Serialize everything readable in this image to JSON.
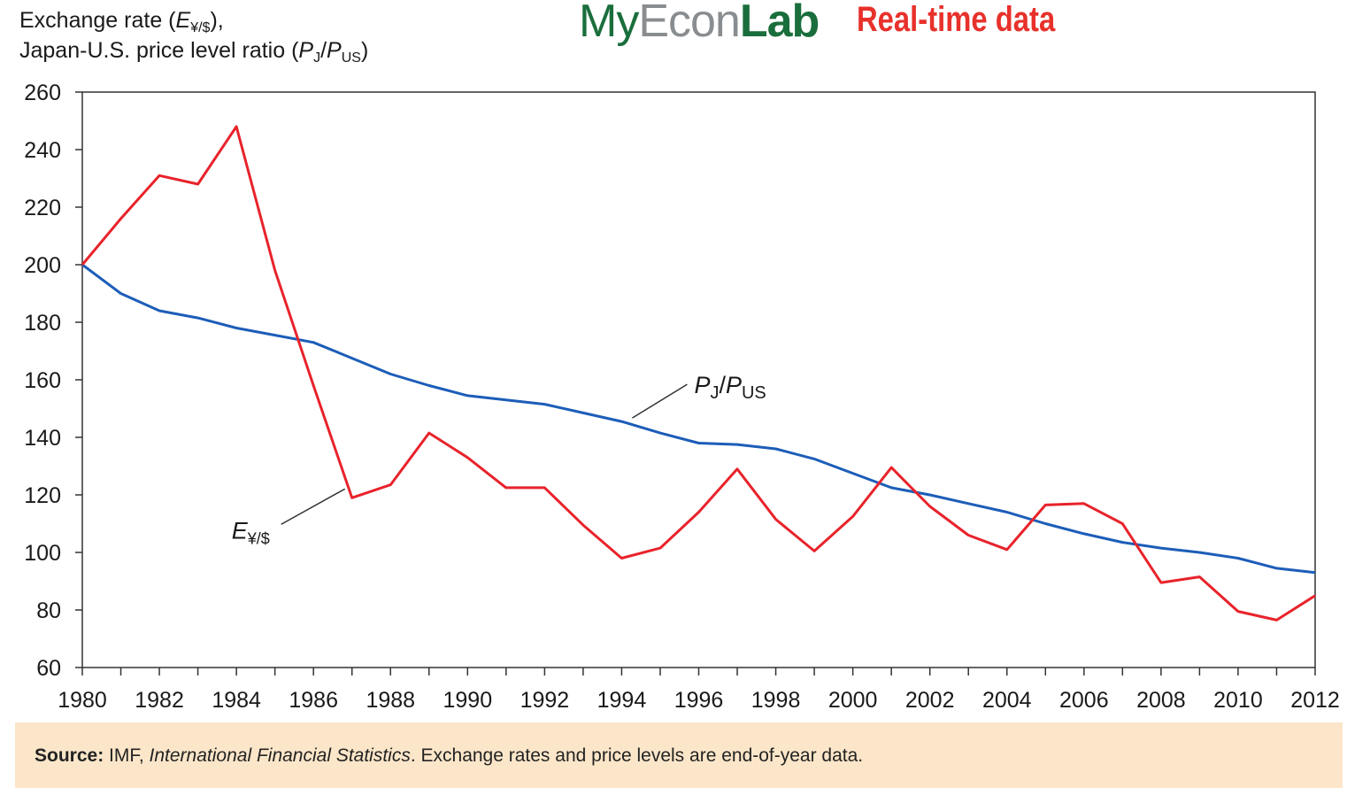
{
  "header": {
    "ylabel_line1_prefix": "Exchange rate (",
    "ylabel_line1_var": "E",
    "ylabel_line1_sub": "¥/$",
    "ylabel_line1_suffix": "),",
    "ylabel_line2_prefix": "Japan-U.S. price level ratio (",
    "ylabel_line2_p1": "P",
    "ylabel_line2_sub1": "J",
    "ylabel_line2_slash": "/",
    "ylabel_line2_p2": "P",
    "ylabel_line2_sub2": "US",
    "ylabel_line2_suffix": ")"
  },
  "brand": {
    "my": "My",
    "econ": "Econ",
    "lab": "Lab",
    "realtime": "Real-time data",
    "colors": {
      "green": "#1a6e3c",
      "gray": "#8a8d8f",
      "red": "#e8312b"
    }
  },
  "source": {
    "label": "Source:",
    "text1": " IMF, ",
    "publication": "International Financial Statistics",
    "text2": ". Exchange rates and price levels are end-of-year data."
  },
  "chart_data": {
    "type": "line",
    "ylim": [
      60,
      260
    ],
    "xlim": [
      1980,
      2012
    ],
    "yticks": [
      60,
      80,
      100,
      120,
      140,
      160,
      180,
      200,
      220,
      240,
      260
    ],
    "xtick_labels": [
      1980,
      1982,
      1984,
      1986,
      1988,
      1990,
      1992,
      1994,
      1996,
      1998,
      2000,
      2002,
      2004,
      2006,
      2008,
      2010,
      2012
    ],
    "grid": false,
    "x": [
      1980,
      1981,
      1982,
      1983,
      1984,
      1985,
      1986,
      1987,
      1988,
      1989,
      1990,
      1991,
      1992,
      1993,
      1994,
      1995,
      1996,
      1997,
      1998,
      1999,
      2000,
      2001,
      2002,
      2003,
      2004,
      2005,
      2006,
      2007,
      2008,
      2009,
      2010,
      2011,
      2012
    ],
    "series": [
      {
        "key": "exchange",
        "color": "#e8232b",
        "values": [
          200,
          216,
          231,
          228,
          248,
          198,
          158,
          119,
          123.5,
          141.5,
          133,
          122.5,
          122.5,
          109.5,
          98,
          101.5,
          114,
          129,
          111.5,
          100.5,
          112.5,
          129.5,
          116,
          106,
          101,
          116.5,
          117,
          110,
          89.5,
          91.5,
          79.5,
          76.5,
          85
        ]
      },
      {
        "key": "price_ratio",
        "color": "#1c5db8",
        "values": [
          200,
          190,
          184,
          181.5,
          178,
          175.5,
          173,
          167.5,
          162,
          158,
          154.5,
          153,
          151.5,
          148.5,
          145.5,
          141.5,
          138,
          137.5,
          136,
          132.5,
          127.5,
          122.5,
          120,
          117,
          114,
          110,
          106.5,
          103.5,
          101.5,
          100,
          98,
          94.5,
          93
        ]
      }
    ],
    "annotations": {
      "price_label": {
        "p": "P",
        "sub1": "J",
        "slash": "/",
        "p2": "P",
        "sub2": "US",
        "anchor_year": 1994
      },
      "exchange_label": {
        "e": "E",
        "sub": "¥/$",
        "anchor_year": 1987
      }
    }
  }
}
